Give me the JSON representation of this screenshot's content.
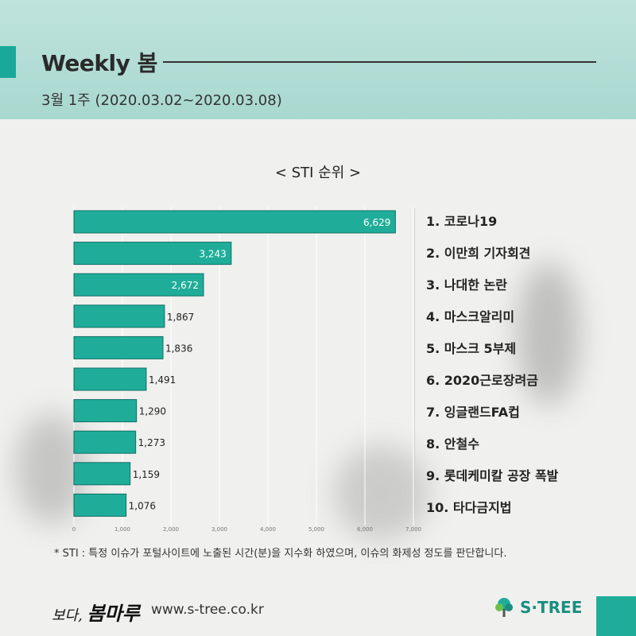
{
  "header": {
    "title": "Weekly 봄",
    "subtitle": "3월 1주 (2020.03.02~2020.03.08)"
  },
  "chart_data": {
    "type": "bar",
    "orientation": "horizontal",
    "title": "< STI 순위 >",
    "categories": [
      "1. 코로나19",
      "2. 이만희 기자회견",
      "3. 나대한 논란",
      "4. 마스크알리미",
      "5. 마스크 5부제",
      "6. 2020근로장려금",
      "7. 잉글랜드FA컵",
      "8. 안철수",
      "9. 롯데케미칼 공장 폭발",
      "10. 타다금지법"
    ],
    "values": [
      6629,
      3243,
      2672,
      1867,
      1836,
      1491,
      1290,
      1273,
      1159,
      1076
    ],
    "value_labels": [
      "6,629",
      "3,243",
      "2,672",
      "1,867",
      "1,836",
      "1,491",
      "1,290",
      "1,273",
      "1,159",
      "1,076"
    ],
    "xlim": [
      0,
      7000
    ],
    "x_ticks": [
      "0",
      "1,000",
      "2,000",
      "3,000",
      "4,000",
      "5,000",
      "6,000",
      "7,000"
    ],
    "bar_color": "#1fad9a",
    "grid": true
  },
  "footnote": "* STI : 특정 이슈가 포털사이트에 노출된 시간(분)을 지수화 하였으며, 이슈의 화제성 정도를 판단합니다.",
  "footer": {
    "brand_prefix": "보다,",
    "brand_name": "봄마루",
    "website": "www.s-tree.co.kr",
    "logo_text": "S·TREE"
  },
  "colors": {
    "accent": "#1aa89a",
    "header_bg": "#b4ddd5"
  }
}
